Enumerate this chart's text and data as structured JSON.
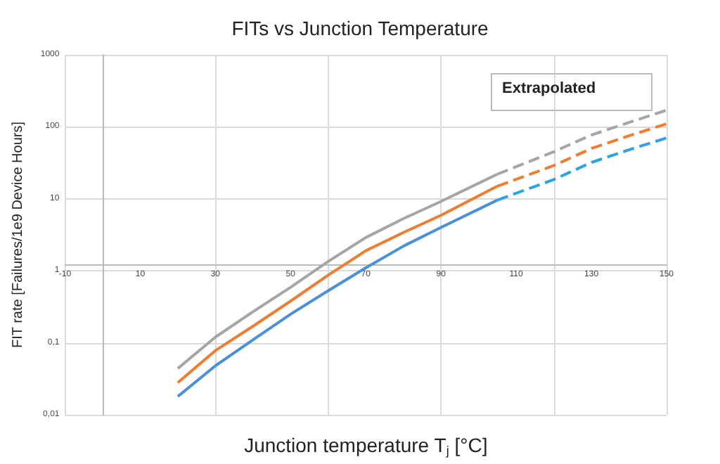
{
  "chart_data": {
    "type": "line",
    "title": "FITs vs Junction Temperature",
    "xlabel": "Junction temperature T$_{j}$ [°C]",
    "ylabel": "FIT rate [Failures/1e9 Device Hours]",
    "annotations": [
      "Extrapolated"
    ],
    "xlim": [
      -10,
      150
    ],
    "xticks": [
      -10,
      10,
      30,
      50,
      70,
      90,
      110,
      130,
      150
    ],
    "ylim": [
      0.01,
      1000
    ],
    "yticks": [
      {
        "value": 0.01,
        "label": "0,01"
      },
      {
        "value": 0.1,
        "label": "0,1"
      },
      1,
      10,
      100,
      1000
    ],
    "log": "y",
    "grid": true,
    "marker": "none",
    "series": [
      {
        "color": "#a5a5a5",
        "line_style": "solid",
        "x": [
          20,
          30,
          40,
          50,
          60,
          70,
          80,
          90,
          105
        ],
        "values": [
          0.044,
          0.12,
          0.27,
          0.59,
          1.35,
          2.9,
          5.3,
          9.2,
          22
        ]
      },
      {
        "color": "#ed7d31",
        "line_style": "solid",
        "x": [
          20,
          30,
          40,
          50,
          60,
          70,
          80,
          90,
          105
        ],
        "values": [
          0.028,
          0.078,
          0.17,
          0.38,
          0.87,
          1.9,
          3.4,
          5.9,
          15
        ]
      },
      {
        "color": "#4a90d9",
        "line_style": "solid",
        "x": [
          20,
          30,
          40,
          50,
          60,
          70,
          80,
          90,
          105
        ],
        "values": [
          0.018,
          0.048,
          0.11,
          0.25,
          0.53,
          1.1,
          2.2,
          4,
          9.6
        ]
      },
      {
        "color": "#a5a5a5",
        "line_style": "dashed",
        "x": [
          105,
          120,
          130,
          140,
          150
        ],
        "values": [
          22,
          45,
          77,
          115,
          170
        ]
      },
      {
        "color": "#ed7d31",
        "line_style": "dashed",
        "x": [
          105,
          120,
          130,
          140,
          150
        ],
        "values": [
          15,
          29,
          50,
          75,
          110
        ]
      },
      {
        "color": "#2ea3e3",
        "line_style": "dashed",
        "x": [
          105,
          120,
          130,
          140,
          150
        ],
        "values": [
          9.6,
          18.5,
          32,
          48,
          70
        ]
      }
    ]
  }
}
